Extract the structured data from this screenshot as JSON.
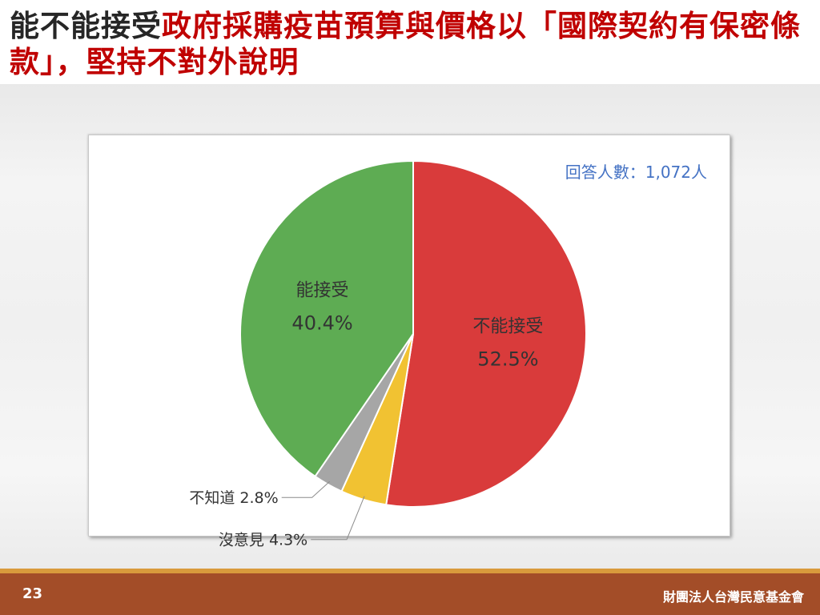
{
  "slide": {
    "title_part1": "能不能接受",
    "title_part2": "政府採購疫苗預算與價格以「國際契約有保密條款」，堅持不對外說明",
    "page_number": "23",
    "organization": "財團法人台灣民意基金會",
    "colors": {
      "title_black": "#262626",
      "title_red": "#c00000",
      "footer": "#a34d28",
      "footer_accent": "#d99a3c",
      "respondents_text": "#4472c4"
    }
  },
  "chart_data": {
    "type": "pie",
    "title": "",
    "respondents_note": "回答人數：1,072人",
    "slices": [
      {
        "label": "不能接受",
        "value": 52.5,
        "display": "52.5%",
        "color": "#d93b3b"
      },
      {
        "label": "沒意見",
        "value": 4.3,
        "display": "4.3%",
        "color": "#f1c232"
      },
      {
        "label": "不知道",
        "value": 2.8,
        "display": "2.8%",
        "color": "#a6a6a6"
      },
      {
        "label": "能接受",
        "value": 40.4,
        "display": "40.4%",
        "color": "#5eac53"
      }
    ]
  }
}
